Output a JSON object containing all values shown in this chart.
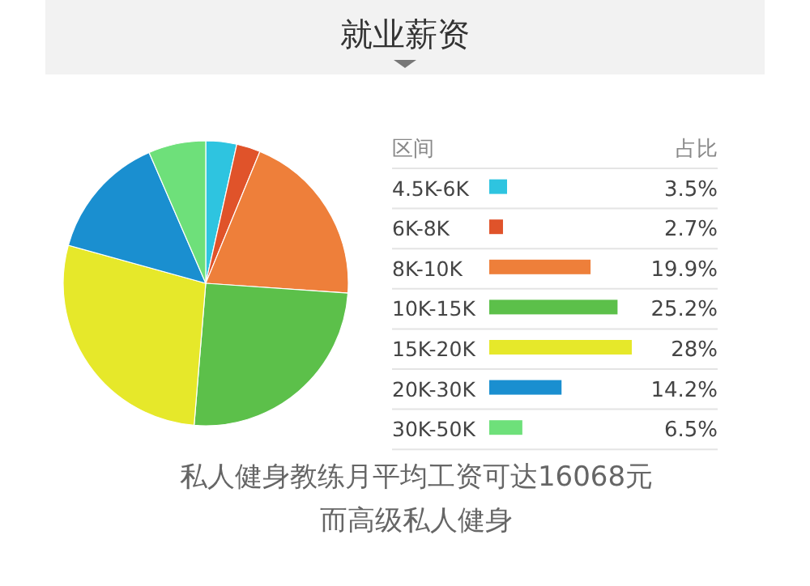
{
  "chart_data": [
    {
      "type": "pie",
      "title": "就业薪资",
      "categories": [
        null,
        null,
        null,
        null,
        null,
        null,
        null
      ],
      "values": [
        3.5,
        2.7,
        19.9,
        25.2,
        28,
        14.2,
        6.5
      ],
      "colors": [
        "#2ec4e0",
        "#e0532a",
        "#ee7f3a",
        "#5cc04a",
        "#e6e82a",
        "#1a8fd0",
        "#6ee07a"
      ],
      "annotations": [
        "私人健身教练月平均工资可达16068元",
        "而高级私人健身"
      ]
    },
    {
      "type": "bar",
      "orientation": "horizontal",
      "xlabel": "占比",
      "ylabel": "区间",
      "categories": [
        "4.5K-6K",
        "6K-8K",
        "8K-10K",
        "10K-15K",
        "15K-20K",
        "20K-30K",
        "30K-50K"
      ],
      "values": [
        3.5,
        2.7,
        19.9,
        25.2,
        28,
        14.2,
        6.5
      ],
      "value_labels": [
        "3.5%",
        "2.7%",
        "19.9%",
        "25.2%",
        "28%",
        "14.2%",
        "6.5%"
      ],
      "colors": [
        "#2ec4e0",
        "#e0532a",
        "#ee7f3a",
        "#5cc04a",
        "#e6e82a",
        "#1a8fd0",
        "#6ee07a"
      ]
    }
  ]
}
